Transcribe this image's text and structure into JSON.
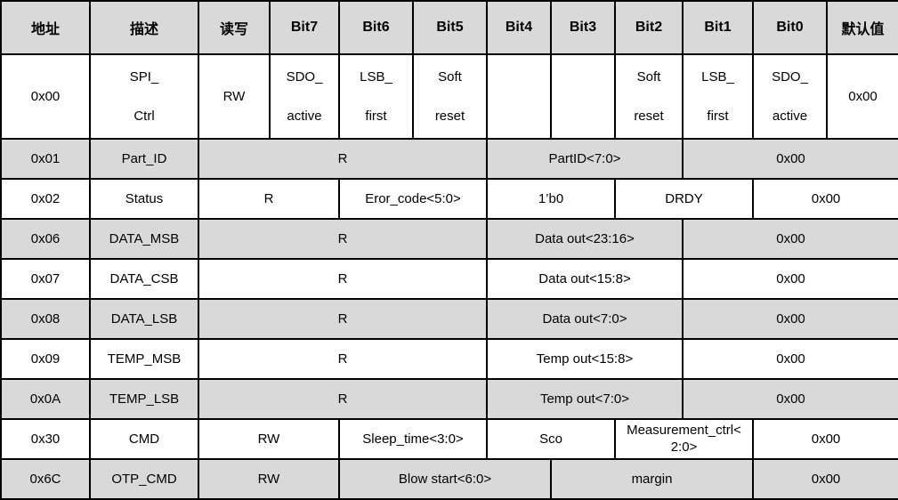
{
  "table": {
    "header_bg": "#d9d9d9",
    "row_alt_bg": "#d9d9d9",
    "border_color": "#000000",
    "headers": [
      "地址",
      "描述",
      "读写",
      "Bit7",
      "Bit6",
      "Bit5",
      "Bit4",
      "Bit3",
      "Bit2",
      "Bit1",
      "Bit0",
      "默认值"
    ],
    "rows": [
      {
        "cells": [
          {
            "t": "0x00"
          },
          {
            "t": "SPI_\nCtrl"
          },
          {
            "t": "RW"
          },
          {
            "t": "SDO_\nactive"
          },
          {
            "t": "LSB_\nfirst"
          },
          {
            "t": "Soft\nreset"
          },
          {
            "t": ""
          },
          {
            "t": ""
          },
          {
            "t": "Soft\nreset"
          },
          {
            "t": "LSB_\nfirst"
          },
          {
            "t": "SDO_\nactive"
          },
          {
            "t": "0x00"
          }
        ]
      },
      {
        "cells": [
          {
            "t": "0x01"
          },
          {
            "t": "Part_ID"
          },
          {
            "t": "R"
          },
          {
            "t": "PartID<7:0>"
          },
          {
            "t": "0x00"
          }
        ]
      },
      {
        "cells": [
          {
            "t": "0x02"
          },
          {
            "t": "Status"
          },
          {
            "t": "R"
          },
          {
            "t": "Eror_code<5:0>"
          },
          {
            "t": "1’b0"
          },
          {
            "t": "DRDY"
          },
          {
            "t": "0x00"
          }
        ]
      },
      {
        "cells": [
          {
            "t": "0x06"
          },
          {
            "t": "DATA_MSB"
          },
          {
            "t": "R"
          },
          {
            "t": "Data out<23:16>"
          },
          {
            "t": "0x00"
          }
        ]
      },
      {
        "cells": [
          {
            "t": "0x07"
          },
          {
            "t": "DATA_CSB"
          },
          {
            "t": "R"
          },
          {
            "t": "Data out<15:8>"
          },
          {
            "t": "0x00"
          }
        ]
      },
      {
        "cells": [
          {
            "t": "0x08"
          },
          {
            "t": "DATA_LSB"
          },
          {
            "t": "R"
          },
          {
            "t": "Data out<7:0>"
          },
          {
            "t": "0x00"
          }
        ]
      },
      {
        "cells": [
          {
            "t": "0x09"
          },
          {
            "t": "TEMP_MSB"
          },
          {
            "t": "R"
          },
          {
            "t": "Temp out<15:8>"
          },
          {
            "t": "0x00"
          }
        ]
      },
      {
        "cells": [
          {
            "t": "0x0A"
          },
          {
            "t": "TEMP_LSB"
          },
          {
            "t": "R"
          },
          {
            "t": "Temp out<7:0>"
          },
          {
            "t": "0x00"
          }
        ]
      },
      {
        "cells": [
          {
            "t": "0x30"
          },
          {
            "t": "CMD"
          },
          {
            "t": "RW"
          },
          {
            "t": "Sleep_time<3:0>"
          },
          {
            "t": "Sco"
          },
          {
            "t": "Measurement_ctrl<\n2:0>"
          },
          {
            "t": "0x00"
          }
        ]
      },
      {
        "cells": [
          {
            "t": "0x6C"
          },
          {
            "t": "OTP_CMD"
          },
          {
            "t": "RW"
          },
          {
            "t": "Blow start<6:0>"
          },
          {
            "t": "margin"
          },
          {
            "t": "0x00"
          }
        ]
      }
    ]
  }
}
